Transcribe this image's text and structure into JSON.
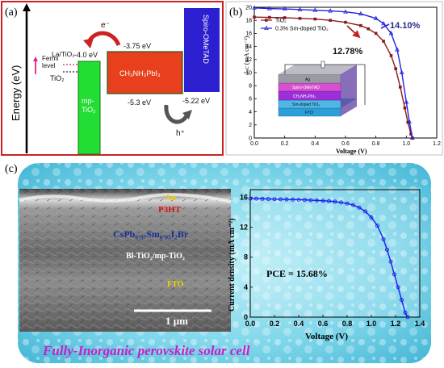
{
  "panel_a": {
    "label": "(a)",
    "y_axis_label": "Energy (eV)",
    "electron_label": "e⁻",
    "hole_label": "h⁺",
    "fermi_label_line1": "Fermi",
    "fermi_label_line2": "level",
    "dopant_label": "La/TiO₂",
    "tio2_label": "TiO₂",
    "mp_tio2_line1": "mp-",
    "mp_tio2_line2": "TiO₂",
    "perovskite_label": "CH₃NH₃PbI₃",
    "spiro_label": "Spiro-OMeTAD",
    "levels": {
      "tio2_cb": "-4.0 eV",
      "perov_cb": "-3.75 eV",
      "perov_vb": "-5.3 eV",
      "spiro_homo": "-5.22 eV"
    }
  },
  "panel_b": {
    "label": "(b)",
    "ylabel": "Jₛᴄ (mA cm⁻²)",
    "xlabel": "Voltage (V)",
    "eff_doped": "14.10%",
    "eff_tio2": "12.78%",
    "stack_layers": [
      "Ag",
      "Spiro-OMeTAD",
      "CH₃NH₃PbI₃",
      "Sm-doped TiO₂",
      "FTO"
    ]
  },
  "panel_c": {
    "label": "(c)",
    "sem_layers": {
      "au": "Au",
      "p3ht": "P3HT",
      "perovskite": "CsPb₀.₉₇Sm₀.₀₃I₂Br",
      "bl": "Bl-TiO₂/mp-TiO₂",
      "fto": "FTO"
    },
    "scale_bar": "1 μm",
    "ylabel": "Current density (mA cm⁻²)",
    "xlabel": "Voltage (V)",
    "pce": "PCE = 15.68%",
    "caption": "Fully-Inorganic perovskite solar cell"
  },
  "chart_data": [
    {
      "type": "line",
      "panel": "b",
      "xlabel": "Voltage (V)",
      "ylabel": "Jₛᴄ (mA cm⁻²)",
      "xlim": [
        0.0,
        1.2
      ],
      "ylim": [
        0,
        20
      ],
      "xticks": [
        0.0,
        0.2,
        0.4,
        0.6,
        0.8,
        1.0,
        1.2
      ],
      "yticks": [
        0,
        2,
        4,
        6,
        8,
        10,
        12,
        14,
        16,
        18,
        20
      ],
      "legend_position": "top-left",
      "series": [
        {
          "name": "TiO₂",
          "color": "#8b1a1a",
          "marker": "square",
          "x": [
            0.0,
            0.1,
            0.2,
            0.3,
            0.4,
            0.5,
            0.6,
            0.7,
            0.75,
            0.8,
            0.85,
            0.9,
            0.93,
            0.96,
            0.99,
            1.01,
            1.03,
            1.04
          ],
          "y": [
            18.5,
            18.45,
            18.4,
            18.3,
            18.2,
            18.0,
            17.7,
            17.2,
            16.7,
            16.0,
            14.8,
            12.6,
            10.6,
            7.8,
            4.6,
            2.4,
            0.6,
            0.0
          ]
        },
        {
          "name": "0.3% Sm-doped TiO₂",
          "color": "#2222dd",
          "marker": "triangle",
          "x": [
            0.0,
            0.1,
            0.2,
            0.3,
            0.4,
            0.5,
            0.6,
            0.7,
            0.8,
            0.85,
            0.9,
            0.94,
            0.97,
            1.0,
            1.02,
            1.04
          ],
          "y": [
            19.9,
            19.8,
            19.75,
            19.65,
            19.55,
            19.45,
            19.3,
            19.0,
            18.3,
            17.5,
            16.0,
            13.5,
            10.0,
            5.5,
            2.5,
            0.0
          ]
        }
      ]
    },
    {
      "type": "line",
      "panel": "c",
      "xlabel": "Voltage (V)",
      "ylabel": "Current density (mA cm⁻²)",
      "xlim": [
        0.0,
        1.4
      ],
      "ylim": [
        0,
        17
      ],
      "xticks": [
        0.0,
        0.2,
        0.4,
        0.6,
        0.8,
        1.0,
        1.2,
        1.4
      ],
      "yticks": [
        0,
        4,
        8,
        12,
        16
      ],
      "series": [
        {
          "color": "#1a1aee",
          "marker": "circle",
          "x": [
            0.0,
            0.05,
            0.1,
            0.15,
            0.2,
            0.25,
            0.3,
            0.35,
            0.4,
            0.45,
            0.5,
            0.55,
            0.6,
            0.65,
            0.7,
            0.75,
            0.8,
            0.85,
            0.9,
            0.95,
            1.0,
            1.05,
            1.1,
            1.13,
            1.16,
            1.19,
            1.22,
            1.25,
            1.28,
            1.3
          ],
          "y": [
            15.8,
            15.8,
            15.78,
            15.76,
            15.74,
            15.72,
            15.7,
            15.68,
            15.66,
            15.64,
            15.6,
            15.56,
            15.52,
            15.47,
            15.4,
            15.3,
            15.15,
            14.95,
            14.6,
            14.1,
            13.3,
            12.2,
            10.4,
            9.0,
            7.4,
            5.7,
            4.0,
            2.3,
            0.6,
            0.0
          ]
        }
      ]
    }
  ],
  "colors": {
    "frame_a": "#cc2222",
    "mp_tio2": "#22dd33",
    "perovskite": "#e8401c",
    "spiro": "#2b1fd0",
    "arrow_e": "#cc2222",
    "arrow_h": "#555555",
    "tio2_series": "#8b1a1a",
    "doped_series": "#2222dd",
    "pce_series": "#1a1aee",
    "caption": "#c81ec8",
    "sem_au": "#f5d000",
    "sem_p3ht": "#dd1111",
    "sem_perov": "#1a2e9a",
    "sem_fto": "#f5d000"
  }
}
